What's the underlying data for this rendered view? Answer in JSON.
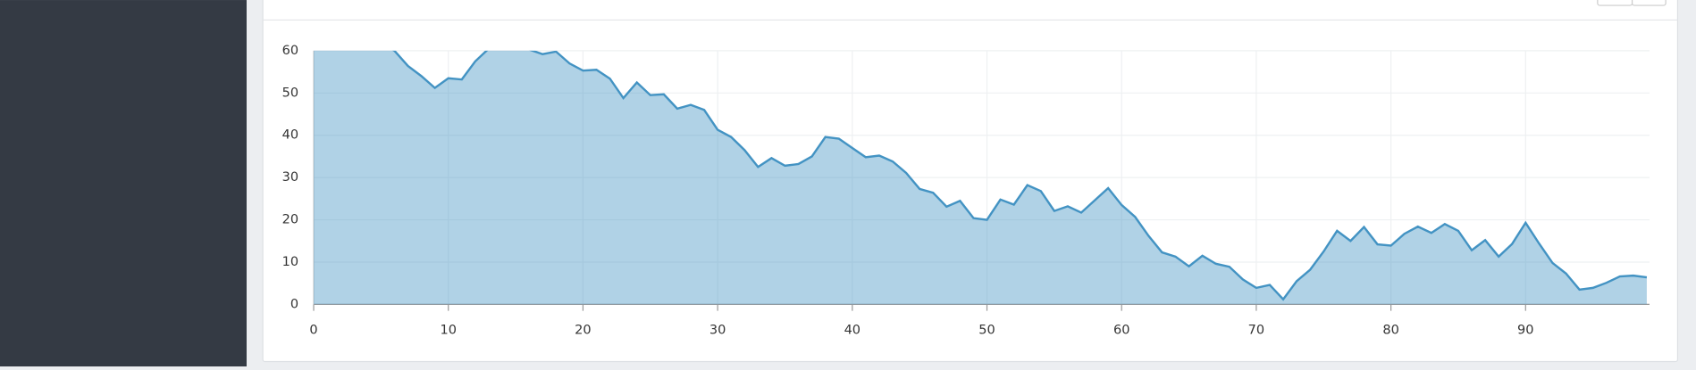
{
  "chart_data": {
    "type": "area",
    "x": [
      0,
      1,
      2,
      3,
      4,
      5,
      6,
      7,
      8,
      9,
      10,
      11,
      12,
      13,
      14,
      15,
      16,
      17,
      18,
      19,
      20,
      21,
      22,
      23,
      24,
      25,
      26,
      27,
      28,
      29,
      30,
      31,
      32,
      33,
      34,
      35,
      36,
      37,
      38,
      39,
      40,
      41,
      42,
      43,
      44,
      45,
      46,
      47,
      48,
      49,
      50,
      51,
      52,
      53,
      54,
      55,
      56,
      57,
      58,
      59,
      60,
      61,
      62,
      63,
      64,
      65,
      66,
      67,
      68,
      69,
      70,
      71,
      72,
      73,
      74,
      75,
      76,
      77,
      78,
      79,
      80,
      81,
      82,
      83,
      84,
      85,
      86,
      87,
      88,
      89,
      90,
      91,
      92,
      93,
      94,
      95,
      96,
      97,
      98,
      99
    ],
    "series": [
      {
        "color": "#4393c3",
        "values": [
          63,
          65,
          64,
          66,
          64,
          62,
          60,
          56.4,
          54,
          51.2,
          53.5,
          53.2,
          57.5,
          60.5,
          63,
          62,
          60.3,
          59.2,
          59.8,
          57,
          55.3,
          55.5,
          53.4,
          48.8,
          52.5,
          49.5,
          49.7,
          46.3,
          47.2,
          46,
          41.3,
          39.6,
          36.5,
          32.5,
          34.6,
          32.8,
          33.2,
          35,
          39.6,
          39.2,
          37,
          34.8,
          35.2,
          33.8,
          31.1,
          27.3,
          26.4,
          23.1,
          24.5,
          20.4,
          20,
          24.8,
          23.6,
          28.2,
          26.8,
          22.1,
          23.2,
          21.7,
          24.6,
          27.5,
          23.5,
          20.7,
          16.2,
          12.3,
          11.3,
          9,
          11.5,
          9.6,
          8.9,
          5.9,
          3.9,
          4.6,
          1.2,
          5.5,
          8.2,
          12.5,
          17.4,
          15,
          18.3,
          14.2,
          13.9,
          16.7,
          18.4,
          16.9,
          19,
          17.4,
          12.8,
          15.2,
          11.3,
          14.3,
          19.3,
          14.4,
          9.8,
          7.3,
          3.5,
          3.9,
          5.1,
          6.6,
          6.8,
          6.4
        ]
      }
    ],
    "xlim": [
      0,
      99
    ],
    "xticks": [
      0,
      10,
      20,
      30,
      40,
      50,
      60,
      70,
      80,
      90
    ],
    "ylim": [
      0,
      60
    ],
    "yticks": [
      0,
      10,
      20,
      30,
      40,
      50,
      60
    ],
    "grid": true
  }
}
